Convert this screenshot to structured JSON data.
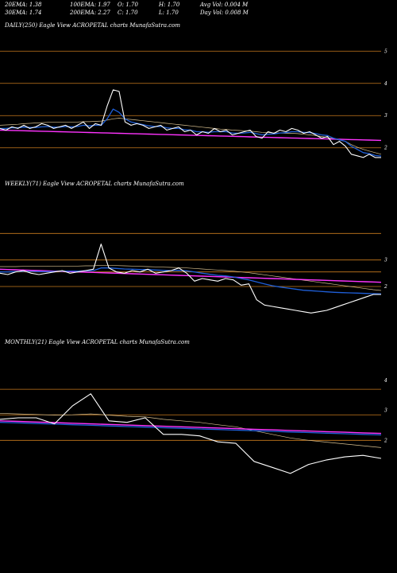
{
  "header": {
    "row1": [
      "20EMA: 1.38",
      "100EMA: 1.97",
      "O: 1.70",
      "H: 1.70",
      "Avg Vol: 0.004  M"
    ],
    "row2": [
      "30EMA: 1.74",
      "200EMA: 2.27",
      "C: 1.70",
      "L: 1.70",
      "Day Vol: 0.008 M"
    ]
  },
  "colors": {
    "price": "#ffffff",
    "ema_short": "#1f5fd8",
    "ema_long": "#ff33ff",
    "grid": "#c87a1e",
    "ema_misc": "#d8c090"
  },
  "chart_data": [
    {
      "type": "line",
      "title": "DAILY(250) Eagle   View  ACROPETAL  charts MunafaSutra.com",
      "ylim": [
        1.4,
        5.6
      ],
      "yticks": [
        "5",
        "4",
        "3",
        "2"
      ],
      "ytick_values": [
        5,
        4,
        3,
        2
      ],
      "grid": true,
      "series": [
        {
          "role": "price",
          "values": [
            2.6,
            2.55,
            2.65,
            2.6,
            2.7,
            2.6,
            2.65,
            2.75,
            2.7,
            2.6,
            2.65,
            2.7,
            2.6,
            2.7,
            2.8,
            2.6,
            2.75,
            2.7,
            3.3,
            3.8,
            3.75,
            2.8,
            2.7,
            2.75,
            2.7,
            2.6,
            2.65,
            2.7,
            2.55,
            2.6,
            2.65,
            2.5,
            2.55,
            2.4,
            2.5,
            2.45,
            2.6,
            2.5,
            2.55,
            2.4,
            2.45,
            2.5,
            2.55,
            2.35,
            2.3,
            2.5,
            2.45,
            2.55,
            2.5,
            2.6,
            2.55,
            2.45,
            2.5,
            2.4,
            2.3,
            2.35,
            2.1,
            2.2,
            2.05,
            1.8,
            1.75,
            1.7,
            1.8,
            1.7,
            1.7
          ]
        },
        {
          "role": "ema_short",
          "values": [
            2.6,
            2.6,
            2.62,
            2.62,
            2.64,
            2.63,
            2.63,
            2.65,
            2.66,
            2.64,
            2.64,
            2.66,
            2.65,
            2.66,
            2.7,
            2.68,
            2.7,
            2.7,
            2.9,
            3.2,
            3.1,
            2.9,
            2.8,
            2.76,
            2.72,
            2.68,
            2.66,
            2.66,
            2.62,
            2.6,
            2.6,
            2.56,
            2.55,
            2.5,
            2.5,
            2.48,
            2.5,
            2.5,
            2.5,
            2.46,
            2.45,
            2.46,
            2.48,
            2.44,
            2.4,
            2.42,
            2.43,
            2.46,
            2.47,
            2.5,
            2.5,
            2.48,
            2.47,
            2.44,
            2.4,
            2.38,
            2.3,
            2.25,
            2.2,
            2.05,
            1.95,
            1.85,
            1.82,
            1.76,
            1.74
          ]
        },
        {
          "role": "ema_long",
          "values": [
            2.55,
            2.545,
            2.54,
            2.535,
            2.53,
            2.525,
            2.52,
            2.515,
            2.51,
            2.505,
            2.5,
            2.495,
            2.49,
            2.485,
            2.48,
            2.475,
            2.47,
            2.465,
            2.46,
            2.455,
            2.45,
            2.445,
            2.44,
            2.435,
            2.43,
            2.425,
            2.42,
            2.415,
            2.41,
            2.405,
            2.4,
            2.395,
            2.39,
            2.385,
            2.38,
            2.375,
            2.37,
            2.365,
            2.36,
            2.355,
            2.35,
            2.345,
            2.34,
            2.335,
            2.33,
            2.325,
            2.32,
            2.315,
            2.31,
            2.305,
            2.3,
            2.295,
            2.29,
            2.285,
            2.28,
            2.275,
            2.27,
            2.265,
            2.26,
            2.255,
            2.25,
            2.245,
            2.24,
            2.235,
            2.23
          ]
        },
        {
          "role": "ema_misc",
          "values": [
            2.7,
            2.71,
            2.72,
            2.73,
            2.75,
            2.76,
            2.77,
            2.78,
            2.79,
            2.8,
            2.8,
            2.8,
            2.8,
            2.8,
            2.81,
            2.81,
            2.82,
            2.83,
            2.86,
            2.9,
            2.92,
            2.9,
            2.88,
            2.86,
            2.84,
            2.82,
            2.8,
            2.78,
            2.76,
            2.74,
            2.72,
            2.7,
            2.68,
            2.66,
            2.64,
            2.62,
            2.6,
            2.58,
            2.57,
            2.55,
            2.54,
            2.53,
            2.52,
            2.5,
            2.48,
            2.47,
            2.46,
            2.46,
            2.45,
            2.45,
            2.44,
            2.42,
            2.4,
            2.38,
            2.35,
            2.32,
            2.28,
            2.24,
            2.2,
            2.1,
            2.02,
            1.95,
            1.9,
            1.85,
            1.8
          ]
        }
      ]
    },
    {
      "type": "line",
      "title": "WEEKLY(71) Eagle   View  ACROPETAL  charts MunafaSutra.com",
      "ylim": [
        0.5,
        5.6
      ],
      "yticks": [
        "3",
        "2"
      ],
      "ytick_values": [
        3,
        2
      ],
      "grid_values": [
        4,
        3,
        2.55,
        2
      ],
      "grid": true,
      "series": [
        {
          "role": "price",
          "values": [
            2.5,
            2.45,
            2.55,
            2.6,
            2.5,
            2.45,
            2.5,
            2.55,
            2.6,
            2.5,
            2.55,
            2.6,
            2.65,
            3.6,
            2.7,
            2.55,
            2.5,
            2.6,
            2.55,
            2.65,
            2.5,
            2.55,
            2.6,
            2.7,
            2.5,
            2.2,
            2.3,
            2.25,
            2.2,
            2.3,
            2.25,
            2.05,
            2.1,
            1.5,
            1.3,
            1.25,
            1.2,
            1.15,
            1.1,
            1.05,
            1.0,
            1.05,
            1.1,
            1.2,
            1.3,
            1.4,
            1.5,
            1.6,
            1.7,
            1.7
          ]
        },
        {
          "role": "ema_short",
          "values": [
            2.55,
            2.55,
            2.56,
            2.57,
            2.57,
            2.56,
            2.56,
            2.57,
            2.58,
            2.58,
            2.58,
            2.59,
            2.6,
            2.7,
            2.7,
            2.68,
            2.66,
            2.65,
            2.64,
            2.64,
            2.62,
            2.61,
            2.6,
            2.61,
            2.59,
            2.55,
            2.5,
            2.46,
            2.42,
            2.4,
            2.36,
            2.3,
            2.25,
            2.17,
            2.1,
            2.03,
            1.98,
            1.94,
            1.9,
            1.86,
            1.84,
            1.82,
            1.8,
            1.78,
            1.77,
            1.76,
            1.75,
            1.74,
            1.73,
            1.72
          ]
        },
        {
          "role": "ema_long",
          "values": [
            2.65,
            2.64,
            2.63,
            2.62,
            2.61,
            2.6,
            2.59,
            2.58,
            2.57,
            2.56,
            2.55,
            2.54,
            2.53,
            2.52,
            2.51,
            2.5,
            2.49,
            2.48,
            2.47,
            2.46,
            2.45,
            2.44,
            2.43,
            2.42,
            2.41,
            2.4,
            2.39,
            2.38,
            2.37,
            2.36,
            2.35,
            2.34,
            2.33,
            2.32,
            2.31,
            2.3,
            2.29,
            2.28,
            2.27,
            2.26,
            2.25,
            2.24,
            2.23,
            2.22,
            2.21,
            2.2,
            2.19,
            2.18,
            2.17,
            2.16
          ]
        },
        {
          "role": "ema_misc",
          "values": [
            2.75,
            2.75,
            2.75,
            2.76,
            2.76,
            2.76,
            2.76,
            2.77,
            2.77,
            2.77,
            2.77,
            2.78,
            2.78,
            2.8,
            2.8,
            2.79,
            2.78,
            2.77,
            2.76,
            2.75,
            2.74,
            2.73,
            2.72,
            2.71,
            2.7,
            2.68,
            2.66,
            2.64,
            2.62,
            2.6,
            2.58,
            2.55,
            2.52,
            2.48,
            2.44,
            2.4,
            2.36,
            2.32,
            2.28,
            2.24,
            2.2,
            2.16,
            2.12,
            2.08,
            2.04,
            2.0,
            1.96,
            1.92,
            1.88,
            1.85
          ]
        }
      ]
    },
    {
      "type": "line",
      "title": "MONTHLY(21) Eagle   View  ACROPETAL  charts MunafaSutra.com",
      "ylim": [
        0.5,
        5.0
      ],
      "yticks": [
        "4",
        "3",
        "2"
      ],
      "ytick_values": [
        4,
        3,
        2
      ],
      "grid_values": [
        3.7,
        2.85,
        2.0
      ],
      "grid": true,
      "series": [
        {
          "role": "price",
          "values": [
            2.7,
            2.75,
            2.75,
            2.55,
            3.15,
            3.55,
            2.65,
            2.6,
            2.75,
            2.2,
            2.2,
            2.15,
            1.95,
            1.9,
            1.3,
            1.1,
            0.9,
            1.2,
            1.35,
            1.45,
            1.5,
            1.4
          ]
        },
        {
          "role": "ema_short",
          "values": [
            2.6,
            2.58,
            2.56,
            2.54,
            2.52,
            2.5,
            2.48,
            2.46,
            2.44,
            2.42,
            2.4,
            2.38,
            2.36,
            2.34,
            2.32,
            2.3,
            2.28,
            2.26,
            2.24,
            2.22,
            2.2,
            2.18
          ]
        },
        {
          "role": "ema_long",
          "values": [
            2.65,
            2.63,
            2.61,
            2.59,
            2.57,
            2.55,
            2.53,
            2.51,
            2.49,
            2.47,
            2.45,
            2.43,
            2.41,
            2.39,
            2.37,
            2.35,
            2.33,
            2.31,
            2.29,
            2.27,
            2.25,
            2.23
          ]
        },
        {
          "role": "ema_misc",
          "values": [
            2.9,
            2.88,
            2.86,
            2.84,
            2.85,
            2.88,
            2.84,
            2.8,
            2.78,
            2.7,
            2.65,
            2.6,
            2.52,
            2.45,
            2.32,
            2.2,
            2.08,
            2.0,
            1.94,
            1.88,
            1.82,
            1.76
          ]
        }
      ]
    }
  ]
}
